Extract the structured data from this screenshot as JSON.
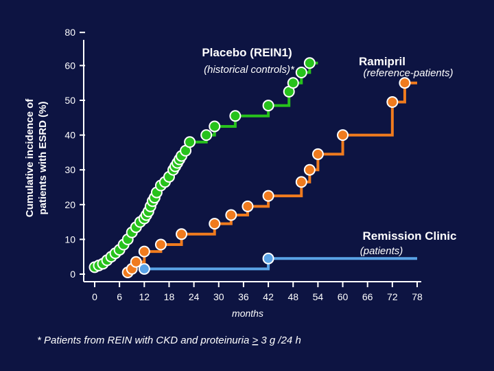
{
  "chart_data": {
    "type": "line",
    "subtype": "step",
    "xlabel": "months",
    "ylabel_lines": [
      "Cumulative incidence of",
      "patients with ESRD (%)"
    ],
    "xlim": [
      0,
      78
    ],
    "ylim": [
      0,
      80
    ],
    "x_ticks": [
      "0",
      "6",
      "12",
      "18",
      "24",
      "30",
      "36",
      "42",
      "48",
      "54",
      "60",
      "66",
      "72",
      "78"
    ],
    "y_ticks": [
      "0",
      "10",
      "20",
      "30",
      "40",
      "50",
      "60",
      "80"
    ],
    "series": [
      {
        "name": "Placebo (REIN1)",
        "subtitle": "(historical controls)*",
        "color": "#27c21c",
        "end_x": 54,
        "points": [
          [
            0,
            2
          ],
          [
            1,
            2.5
          ],
          [
            2,
            3
          ],
          [
            3,
            4
          ],
          [
            4,
            5
          ],
          [
            5,
            6
          ],
          [
            6,
            7
          ],
          [
            7,
            8.5
          ],
          [
            8,
            10
          ],
          [
            9,
            12
          ],
          [
            10,
            13.5
          ],
          [
            11,
            15
          ],
          [
            12,
            16
          ],
          [
            12.5,
            17
          ],
          [
            13,
            18
          ],
          [
            13.5,
            19.5
          ],
          [
            14,
            21
          ],
          [
            14.5,
            22
          ],
          [
            15,
            23.5
          ],
          [
            16,
            25.5
          ],
          [
            17,
            26.5
          ],
          [
            18,
            28
          ],
          [
            19,
            30
          ],
          [
            19.5,
            31
          ],
          [
            20,
            32
          ],
          [
            20.5,
            33
          ],
          [
            21,
            34
          ],
          [
            22,
            35.5
          ],
          [
            23,
            38
          ],
          [
            27,
            40
          ],
          [
            29,
            42.5
          ],
          [
            34,
            45.5
          ],
          [
            42,
            48.5
          ],
          [
            47,
            52.5
          ],
          [
            48,
            55
          ],
          [
            50,
            58
          ],
          [
            52,
            61.5
          ]
        ]
      },
      {
        "name": "Ramipril",
        "subtitle": "(reference-patients)",
        "color": "#f07b1e",
        "end_x": 78,
        "points": [
          [
            8,
            0.5
          ],
          [
            9,
            1.5
          ],
          [
            10,
            3.5
          ],
          [
            12,
            6.5
          ],
          [
            16,
            8.5
          ],
          [
            21,
            11.5
          ],
          [
            29,
            14.5
          ],
          [
            33,
            17
          ],
          [
            37,
            19.5
          ],
          [
            42,
            22.5
          ],
          [
            50,
            26.5
          ],
          [
            52,
            30
          ],
          [
            54,
            34.5
          ],
          [
            60,
            40
          ],
          [
            72,
            49.5
          ],
          [
            75,
            55
          ]
        ]
      },
      {
        "name": "Remission Clinic",
        "subtitle": "(patients)",
        "color": "#5aa3e6",
        "end_x": 78,
        "points": [
          [
            12,
            1.5
          ],
          [
            42,
            4.5
          ]
        ]
      }
    ]
  },
  "footnote": {
    "prefix": "* Patients from REIN with CKD and proteinuria ",
    "underlined": ">",
    "suffix": " 3 g /24 h"
  }
}
